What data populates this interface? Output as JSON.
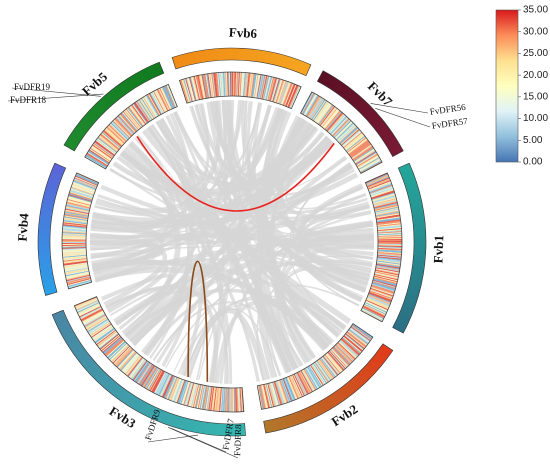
{
  "chromosomes": [
    {
      "name": "Fvb1",
      "color": "#24a79a",
      "color2": "#2b6f84"
    },
    {
      "name": "Fvb2",
      "color": "#e23a1a",
      "color2": "#b0782a"
    },
    {
      "name": "Fvb3",
      "color": "#34b7b0",
      "color2": "#4a86a4"
    },
    {
      "name": "Fvb4",
      "color": "#2aa0e8",
      "color2": "#5c64d6"
    },
    {
      "name": "Fvb5",
      "color": "#1f8a2e",
      "color2": "#117a1e"
    },
    {
      "name": "Fvb6",
      "color": "#f08a16",
      "color2": "#f5a520"
    },
    {
      "name": "Fvb7",
      "color": "#5a1024",
      "color2": "#7a1a34"
    }
  ],
  "gene_labels": [
    {
      "id": "fvdfr19",
      "text": "FvDFR19"
    },
    {
      "id": "fvdfr18",
      "text": "FvDFR18"
    },
    {
      "id": "fvdfr56",
      "text": "FvDFR56"
    },
    {
      "id": "fvdfr57",
      "text": "FvDFR57"
    },
    {
      "id": "fvdfr9",
      "text": "FvDFR9"
    },
    {
      "id": "fvdfr7",
      "text": "FvDFR7"
    },
    {
      "id": "fvdfr8",
      "text": "FvDFR8"
    }
  ],
  "highlight_links": [
    {
      "from": "Fvb5",
      "to": "Fvb7",
      "color": "#e8231f"
    },
    {
      "from": "Fvb3",
      "to": "Fvb3",
      "color": "#8a4a1a"
    }
  ],
  "legend": {
    "ticks": [
      "35.00",
      "30.00",
      "25.00",
      "20.00",
      "15.00",
      "10.00",
      "5.00",
      "0.00"
    ],
    "colors": [
      "#d7191c",
      "#fc8d59",
      "#fee090",
      "#ffffbf",
      "#e0f3f8",
      "#91bfdb",
      "#4575b4"
    ]
  }
}
